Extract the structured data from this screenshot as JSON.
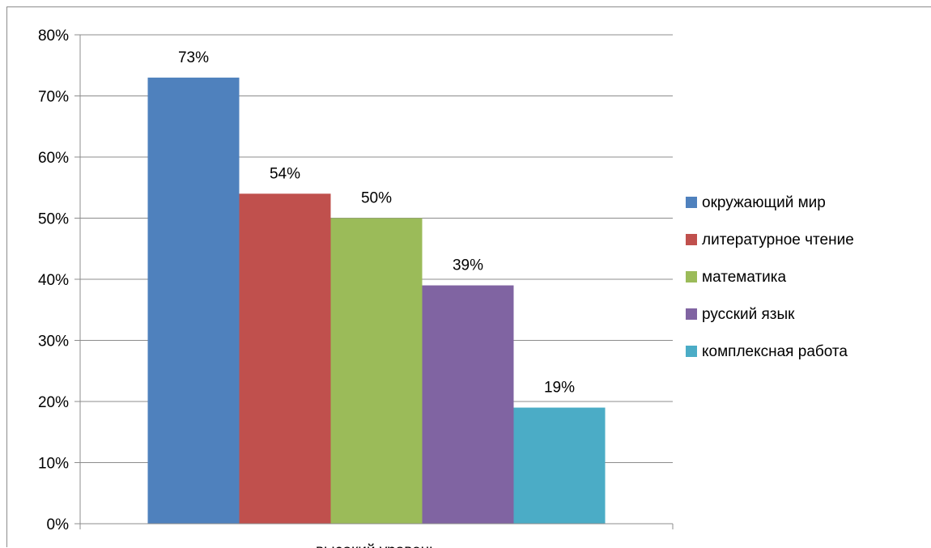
{
  "chart_data": {
    "type": "bar",
    "categories": [
      "высокий уровень"
    ],
    "series": [
      {
        "name": "окружающий мир",
        "values": [
          73
        ],
        "label": "73%",
        "color": "#4f81bd"
      },
      {
        "name": "литературное чтение",
        "values": [
          54
        ],
        "label": "54%",
        "color": "#c0504d"
      },
      {
        "name": "математика",
        "values": [
          50
        ],
        "label": "50%",
        "color": "#9bbb59"
      },
      {
        "name": "русский язык",
        "values": [
          39
        ],
        "label": "39%",
        "color": "#8064a2"
      },
      {
        "name": "комплексная работа",
        "values": [
          19
        ],
        "label": "19%",
        "color": "#4bacc6"
      }
    ],
    "title": "",
    "xlabel": "",
    "ylabel": "",
    "ylim": [
      0,
      80
    ],
    "yticks": [
      "0%",
      "10%",
      "20%",
      "30%",
      "40%",
      "50%",
      "60%",
      "70%",
      "80%"
    ],
    "grid": true,
    "legend": "right"
  }
}
